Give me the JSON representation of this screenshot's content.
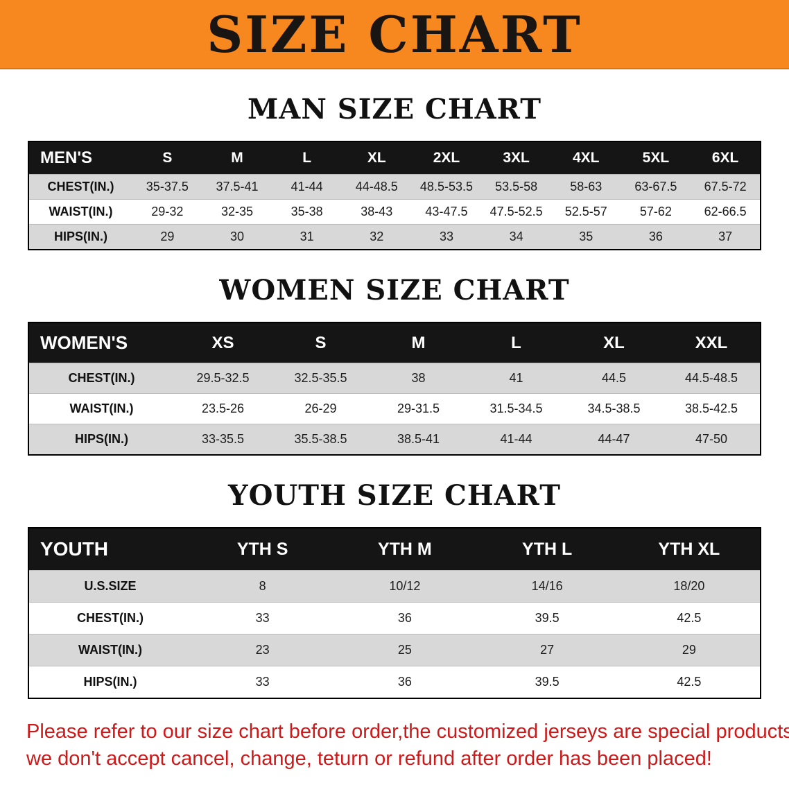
{
  "banner": {
    "title": "SIZE CHART"
  },
  "colors": {
    "banner_bg": "#f6881f",
    "header_bar": "#151515",
    "row_alt": "#d8d8d8",
    "notice_text": "#cc1a1a"
  },
  "men": {
    "title": "MAN SIZE CHART",
    "table": {
      "header": [
        "MEN'S",
        "S",
        "M",
        "L",
        "XL",
        "2XL",
        "3XL",
        "4XL",
        "5XL",
        "6XL"
      ],
      "rows": [
        {
          "label": "CHEST(IN.)",
          "values": [
            "35-37.5",
            "37.5-41",
            "41-44",
            "44-48.5",
            "48.5-53.5",
            "53.5-58",
            "58-63",
            "63-67.5",
            "67.5-72"
          ]
        },
        {
          "label": "WAIST(IN.)",
          "values": [
            "29-32",
            "32-35",
            "35-38",
            "38-43",
            "43-47.5",
            "47.5-52.5",
            "52.5-57",
            "57-62",
            "62-66.5"
          ]
        },
        {
          "label": "HIPS(IN.)",
          "values": [
            "29",
            "30",
            "31",
            "32",
            "33",
            "34",
            "35",
            "36",
            "37"
          ]
        }
      ]
    }
  },
  "women": {
    "title": "WOMEN SIZE CHART",
    "table": {
      "header": [
        "WOMEN'S",
        "XS",
        "S",
        "M",
        "L",
        "XL",
        "XXL"
      ],
      "rows": [
        {
          "label": "CHEST(IN.)",
          "values": [
            "29.5-32.5",
            "32.5-35.5",
            "38",
            "41",
            "44.5",
            "44.5-48.5"
          ]
        },
        {
          "label": "WAIST(IN.)",
          "values": [
            "23.5-26",
            "26-29",
            "29-31.5",
            "31.5-34.5",
            "34.5-38.5",
            "38.5-42.5"
          ]
        },
        {
          "label": "HIPS(IN.)",
          "values": [
            "33-35.5",
            "35.5-38.5",
            "38.5-41",
            "41-44",
            "44-47",
            "47-50"
          ]
        }
      ]
    }
  },
  "youth": {
    "title": "YOUTH SIZE CHART",
    "table": {
      "header": [
        "YOUTH",
        "YTH S",
        "YTH M",
        "YTH L",
        "YTH XL"
      ],
      "rows": [
        {
          "label": "U.S.SIZE",
          "values": [
            "8",
            "10/12",
            "14/16",
            "18/20"
          ]
        },
        {
          "label": "CHEST(IN.)",
          "values": [
            "33",
            "36",
            "39.5",
            "42.5"
          ]
        },
        {
          "label": "WAIST(IN.)",
          "values": [
            "23",
            "25",
            "27",
            "29"
          ]
        },
        {
          "label": "HIPS(IN.)",
          "values": [
            "33",
            "36",
            "39.5",
            "42.5"
          ]
        }
      ]
    }
  },
  "notice": {
    "line1": "Please refer to our size chart before order,the customized jerseys are special products,",
    "line2": "we don't accept cancel, change, teturn or refund after order has been placed!"
  }
}
